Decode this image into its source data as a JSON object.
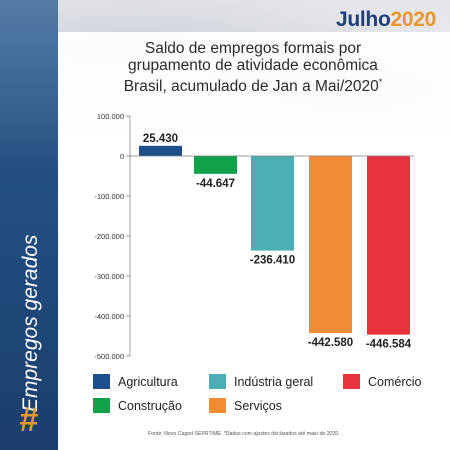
{
  "brand": {
    "name": "Julho",
    "year": "2020"
  },
  "side_label": "Empregos gerados",
  "side_symbol": "#",
  "chart_data": {
    "type": "bar",
    "title": "Saldo de empregos formais por grupamento de atividade econômica Brasil, acumulado de Jan a Mai/2020",
    "title_lines": [
      "Saldo de empregos formais por",
      "grupamento de atividade econômica",
      "Brasil, acumulado de Jan a Mai/2020"
    ],
    "title_mark": "*",
    "categories": [
      "Agricultura",
      "Construção",
      "Indústria geral",
      "Serviços",
      "Comércio"
    ],
    "values": [
      25430,
      -44647,
      -236410,
      -442580,
      -446584
    ],
    "data_labels": [
      "25.430",
      "-44.647",
      "-236.410",
      "-442.580",
      "-446.584"
    ],
    "colors": [
      "#1f4e8c",
      "#12a14b",
      "#4aaeb5",
      "#f28c34",
      "#e8333d"
    ],
    "ylim": [
      -500000,
      100000
    ],
    "yticks": [
      100000,
      0,
      -100000,
      -200000,
      -300000,
      -400000,
      -500000
    ],
    "ytick_labels": [
      "100.000",
      "0",
      "-100.000",
      "-200.000",
      "-300.000",
      "-400.000",
      "-500.000"
    ],
    "grid": false,
    "legend_position": "bottom"
  },
  "source_note": "Fonte: Novo Caged SEPRT/ME. *Dados com ajustes declarados até maio de 2020."
}
